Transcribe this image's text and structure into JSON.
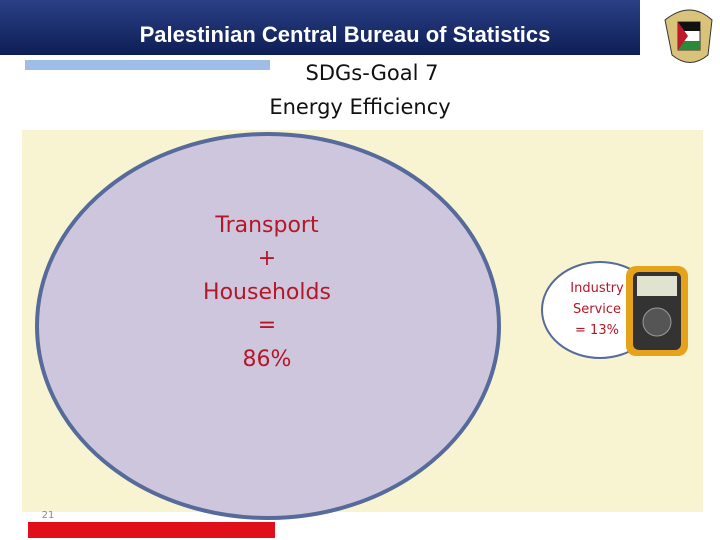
{
  "header": {
    "title": "Palestinian Central Bureau of Statistics"
  },
  "slide": {
    "title": "SDGs-Goal 7",
    "subtitle": "Energy Efficiency",
    "main_bubble": [
      "Transport",
      "+",
      "Households",
      "=",
      "86%"
    ],
    "side_bubble": [
      "Industry",
      "Service",
      "= 13%"
    ],
    "page_number": "21"
  }
}
